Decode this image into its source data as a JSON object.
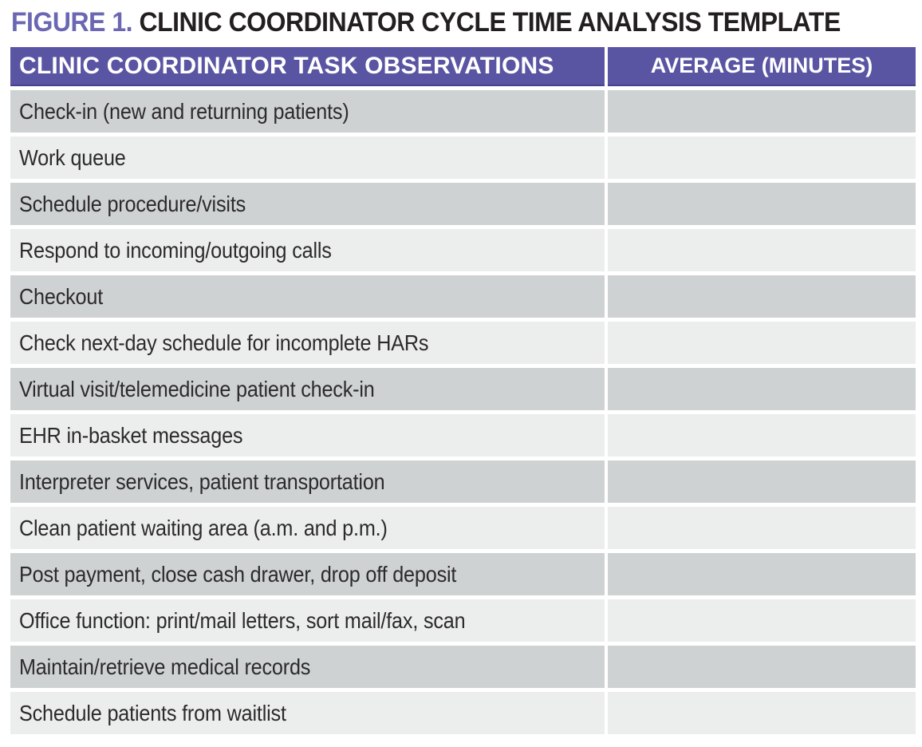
{
  "title": {
    "label": "FIGURE 1.",
    "text": "CLINIC COORDINATOR CYCLE TIME ANALYSIS TEMPLATE"
  },
  "colors": {
    "header_purple": "#5a55a3",
    "header_border": "#474190",
    "figure_label_purple": "#6b67b2",
    "title_black": "#231f20",
    "row_dark": "#ced2d2",
    "row_light": "#ebeeec",
    "body_text": "#2d2a2b",
    "header_text": "#ffffff"
  },
  "chart_data": {
    "type": "table",
    "title": "FIGURE 1. CLINIC COORDINATOR CYCLE TIME ANALYSIS TEMPLATE",
    "columns": [
      "CLINIC COORDINATOR TASK OBSERVATIONS",
      "AVERAGE (MINUTES)"
    ],
    "rows": [
      {
        "task": "Check-in (new and returning patients)",
        "average": ""
      },
      {
        "task": "Work queue",
        "average": ""
      },
      {
        "task": "Schedule procedure/visits",
        "average": ""
      },
      {
        "task": "Respond to incoming/outgoing calls",
        "average": ""
      },
      {
        "task": "Checkout",
        "average": ""
      },
      {
        "task": "Check next-day schedule for incomplete HARs",
        "average": ""
      },
      {
        "task": "Virtual visit/telemedicine patient check-in",
        "average": ""
      },
      {
        "task": "EHR in-basket messages",
        "average": ""
      },
      {
        "task": "Interpreter services, patient transportation",
        "average": ""
      },
      {
        "task": "Clean patient waiting area (a.m. and p.m.)",
        "average": ""
      },
      {
        "task": "Post payment, close cash drawer, drop off deposit",
        "average": ""
      },
      {
        "task": "Office function: print/mail letters, sort mail/fax, scan",
        "average": ""
      },
      {
        "task": "Maintain/retrieve medical records",
        "average": ""
      },
      {
        "task": "Schedule patients from waitlist",
        "average": ""
      }
    ]
  },
  "table": {
    "columns": [
      "CLINIC COORDINATOR TASK OBSERVATIONS",
      "AVERAGE (MINUTES)"
    ],
    "rows": [
      {
        "task": "Check-in (new and returning patients)",
        "average": ""
      },
      {
        "task": "Work queue",
        "average": ""
      },
      {
        "task": "Schedule procedure/visits",
        "average": ""
      },
      {
        "task": "Respond to incoming/outgoing calls",
        "average": ""
      },
      {
        "task": "Checkout",
        "average": ""
      },
      {
        "task": "Check next-day schedule for incomplete HARs",
        "average": ""
      },
      {
        "task": "Virtual visit/telemedicine patient check-in",
        "average": ""
      },
      {
        "task": "EHR in-basket messages",
        "average": ""
      },
      {
        "task": "Interpreter services, patient transportation",
        "average": ""
      },
      {
        "task": "Clean patient waiting area (a.m. and p.m.)",
        "average": ""
      },
      {
        "task": "Post payment, close cash drawer, drop off deposit",
        "average": ""
      },
      {
        "task": "Office function: print/mail letters, sort mail/fax, scan",
        "average": ""
      },
      {
        "task": "Maintain/retrieve medical records",
        "average": ""
      },
      {
        "task": "Schedule patients from waitlist",
        "average": ""
      }
    ]
  }
}
